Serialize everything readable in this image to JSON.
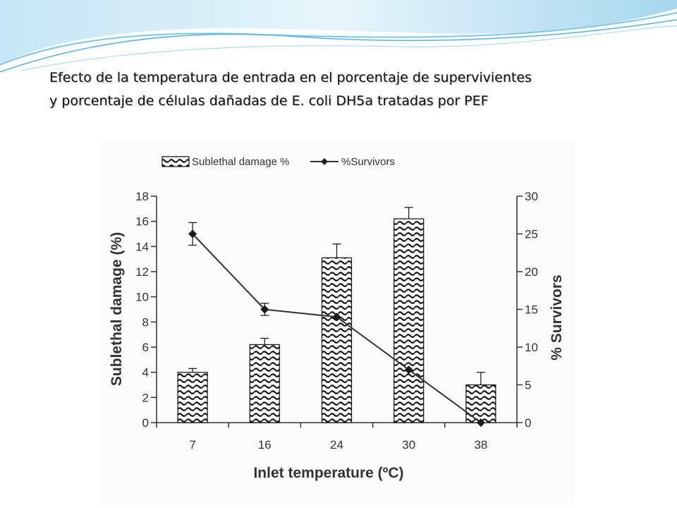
{
  "slide": {
    "title_line1": "Efecto de la temperatura  de entrada en el porcentaje  de supervivientes",
    "title_line2": "y porcentaje de células dañadas de E. coli DH5a tratadas por PEF"
  },
  "colors": {
    "wave_light": "#dcf0f8",
    "wave_mid": "#9fd4ec",
    "wave_line": "#6fbde2",
    "bar_stroke": "#111111",
    "line": "#333333"
  },
  "chart_data": {
    "type": "bar",
    "categories": [
      "7",
      "16",
      "24",
      "30",
      "38"
    ],
    "xlabel": "Inlet temperature (ºC)",
    "legend_position": "top-left",
    "series": [
      {
        "name": "Sublethal damage %",
        "type": "bar",
        "axis": "left",
        "values": [
          4.0,
          6.2,
          13.1,
          16.2,
          3.0
        ],
        "errors": [
          0.3,
          0.5,
          1.1,
          0.9,
          1.0
        ]
      },
      {
        "name": "%Survivors",
        "type": "line",
        "axis": "right",
        "values": [
          25,
          15,
          14,
          7,
          0
        ],
        "errors": [
          1.5,
          0.8,
          null,
          null,
          null
        ]
      }
    ],
    "left_axis": {
      "label": "Sublethal damage (%)",
      "min": 0,
      "max": 18,
      "ticks": [
        0,
        2,
        4,
        6,
        8,
        10,
        12,
        14,
        16,
        18
      ]
    },
    "right_axis": {
      "label": "% Survivors",
      "min": 0,
      "max": 30,
      "ticks": [
        0,
        5,
        10,
        15,
        20,
        25,
        30
      ]
    }
  }
}
